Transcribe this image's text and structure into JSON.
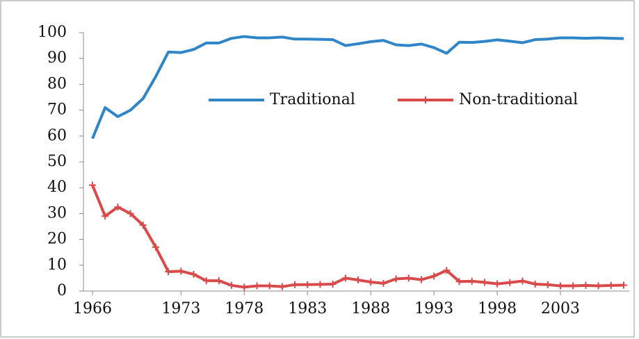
{
  "chart_data": {
    "type": "line",
    "x": [
      1966,
      1967,
      1968,
      1969,
      1970,
      1971,
      1972,
      1973,
      1974,
      1975,
      1976,
      1977,
      1978,
      1979,
      1980,
      1981,
      1982,
      1983,
      1984,
      1985,
      1986,
      1987,
      1988,
      1989,
      1990,
      1991,
      1992,
      1993,
      1994,
      1995,
      1996,
      1997,
      1998,
      1999,
      2000,
      2001,
      2002,
      2003,
      2004,
      2005,
      2006,
      2007,
      2008
    ],
    "series": [
      {
        "name": "Traditional",
        "color": "#2e86c8",
        "values": [
          59,
          71,
          67.5,
          70,
          74.5,
          83,
          92.5,
          92.3,
          93.5,
          96,
          96,
          97.8,
          98.5,
          98,
          98,
          98.3,
          97.5,
          97.5,
          97.4,
          97.3,
          95,
          95.7,
          96.5,
          97,
          95.3,
          95,
          95.6,
          94.2,
          92,
          96.3,
          96.2,
          96.6,
          97.2,
          96.7,
          96.1,
          97.3,
          97.5,
          98,
          98,
          97.8,
          98,
          97.8,
          97.7
        ]
      },
      {
        "name": "Non-traditional",
        "color": "#d94a4a",
        "values": [
          41,
          29,
          32.5,
          30,
          25.5,
          17,
          7.5,
          7.7,
          6.5,
          4,
          4,
          2.2,
          1.5,
          2,
          2,
          1.7,
          2.5,
          2.5,
          2.6,
          2.7,
          5,
          4.3,
          3.5,
          3,
          4.7,
          5,
          4.4,
          5.8,
          8,
          3.7,
          3.8,
          3.4,
          2.8,
          3.3,
          3.9,
          2.7,
          2.5,
          2,
          2,
          2.2,
          2,
          2.2,
          2.3
        ]
      }
    ],
    "xlim": [
      1966,
      2008
    ],
    "xticks": [
      1966,
      1973,
      1978,
      1983,
      1988,
      1993,
      1998,
      2003
    ],
    "ylim": [
      0,
      100
    ],
    "yticks": [
      0,
      10,
      20,
      30,
      40,
      50,
      60,
      70,
      80,
      90,
      100
    ]
  }
}
